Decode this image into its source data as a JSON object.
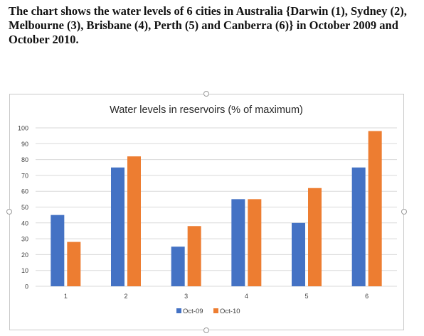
{
  "caption": "The chart shows the water levels of 6 cities in Australia {Darwin (1), Sydney (2), Melbourne (3), Brisbane (4), Perth (5) and Canberra (6)} in October 2009 and October 2010.",
  "colors": {
    "series1": "#4472C4",
    "series2": "#ED7D31",
    "grid": "#d9d9d9",
    "text": "#404040"
  },
  "chart_data": {
    "type": "bar",
    "title": "Water levels in reservoirs (% of maximum)",
    "xlabel": "",
    "ylabel": "",
    "categories": [
      "1",
      "2",
      "3",
      "4",
      "5",
      "6"
    ],
    "series": [
      {
        "name": "Oct-09",
        "values": [
          45,
          75,
          25,
          55,
          40,
          75
        ]
      },
      {
        "name": "Oct-10",
        "values": [
          28,
          82,
          38,
          55,
          62,
          98
        ]
      }
    ],
    "ylim": [
      0,
      100
    ],
    "yticks": [
      "0",
      "10",
      "20",
      "30",
      "40",
      "50",
      "60",
      "70",
      "80",
      "90",
      "100"
    ],
    "grid": true,
    "legend": "bottom"
  }
}
